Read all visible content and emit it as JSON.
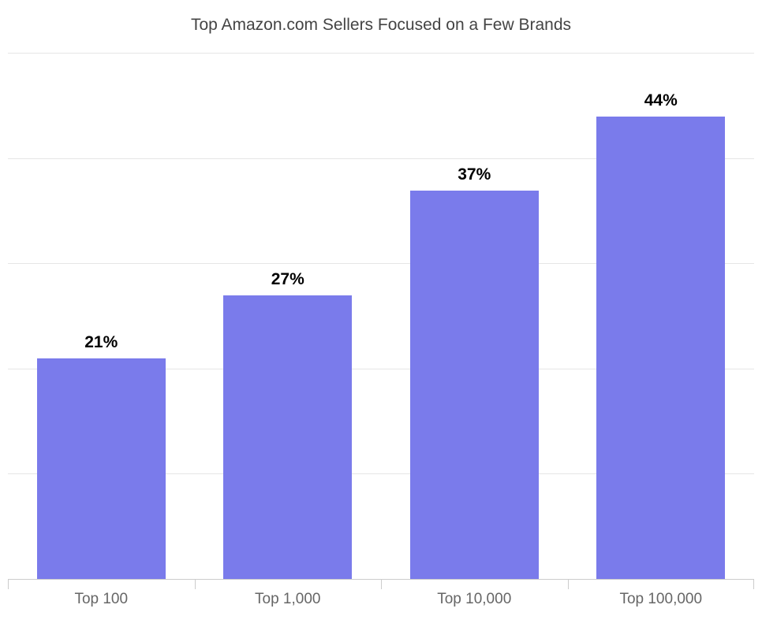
{
  "chart": {
    "type": "bar",
    "title": "Top Amazon.com Sellers Focused on a Few Brands",
    "title_fontsize": 21,
    "title_color": "#444444",
    "categories": [
      "Top 100",
      "Top 1,000",
      "Top 10,000",
      "Top 100,000"
    ],
    "values": [
      21,
      27,
      37,
      44
    ],
    "value_labels": [
      "21%",
      "27%",
      "37%",
      "44%"
    ],
    "bar_color": "#7a7beb",
    "value_label_fontsize": 21,
    "value_label_fontweight": "bold",
    "value_label_color": "#000000",
    "x_label_fontsize": 19,
    "x_label_color": "#666666",
    "ylim": [
      0,
      50
    ],
    "grid_step": 10,
    "grid_color": "#e6e6e6",
    "axis_tick_color": "#cccccc",
    "background_color": "#ffffff",
    "bar_width_pct": 69
  }
}
